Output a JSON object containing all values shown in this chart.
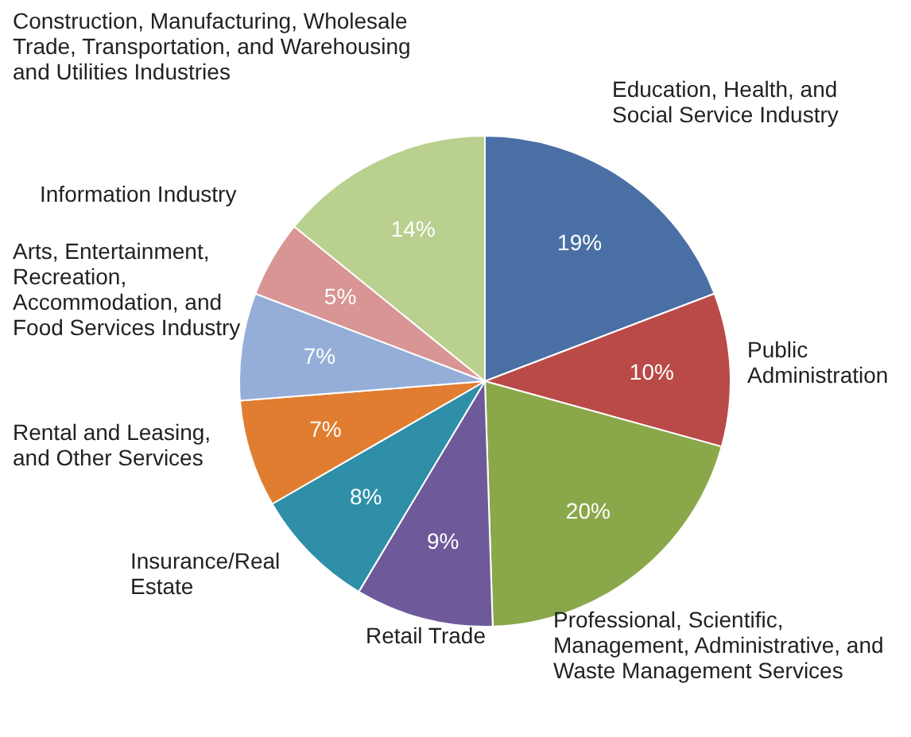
{
  "chart_data": {
    "type": "pie",
    "categories": [
      "Education, Health, and Social Service  Industry",
      "Public Administration",
      "Professional, Scientific, Management, Administrative, and  Waste Management Services",
      "Retail Trade",
      "Insurance/Real Estate",
      "Rental and Leasing, and Other Services",
      "Arts, Entertainment, Recreation, Accommodation, and Food Services Industry",
      "Information Industry",
      "Construction, Manufacturing, Wholesale Trade, Transportation, and Warehousing and Utilities Industries"
    ],
    "values": [
      19,
      10,
      20,
      9,
      8,
      7,
      7,
      5,
      14
    ],
    "colors": [
      "#4a6fa5",
      "#b94a48",
      "#8aa84a",
      "#6e5a9a",
      "#2f8fa8",
      "#e07d30",
      "#94aed8",
      "#d89594",
      "#b9d08e"
    ],
    "value_labels": [
      "19%",
      "10%",
      "20%",
      "9%",
      "8%",
      "7%",
      "7%",
      "5%",
      "14%"
    ],
    "legend": false
  }
}
